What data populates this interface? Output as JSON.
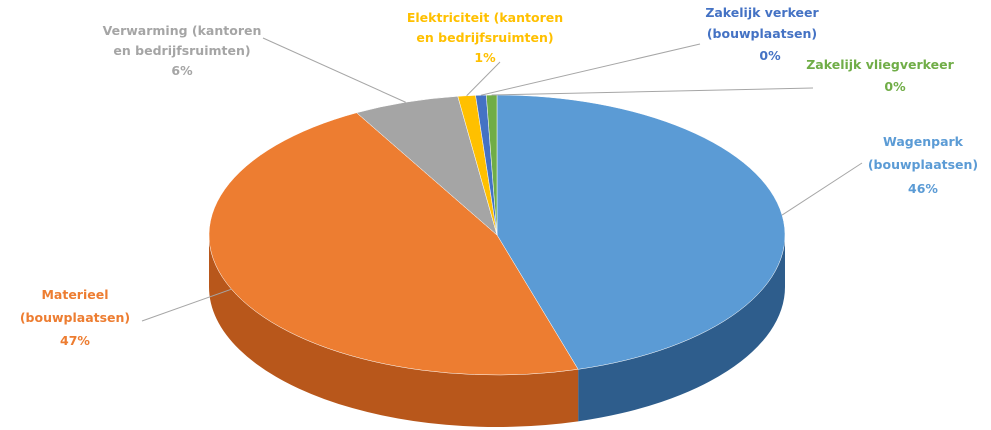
{
  "chart_data": {
    "type": "pie",
    "style": "3d-tilted",
    "legend": "none",
    "slices": [
      {
        "name": "Wagenpark (bouwplaatsen)",
        "percent_label": "46%",
        "value": 46,
        "color": "#5B9BD5",
        "side_color": "#2E5D8C"
      },
      {
        "name": "Materieel (bouwplaatsen)",
        "percent_label": "47%",
        "value": 47,
        "color": "#ED7D31",
        "side_color": "#B8571B"
      },
      {
        "name": "Verwarming (kantoren en bedrijfsruimten)",
        "percent_label": "6%",
        "value": 6,
        "color": "#A5A5A5",
        "side_color": "#7A7A7A"
      },
      {
        "name": "Elektriciteit (kantoren en bedrijfsruimten)",
        "percent_label": "1%",
        "value": 1,
        "color": "#FFC000",
        "side_color": "#C89600"
      },
      {
        "name": "Zakelijk verkeer (bouwplaatsen)",
        "percent_label": "0%",
        "value": 0,
        "color": "#4472C4",
        "side_color": "#2F528F"
      },
      {
        "name": "Zakelijk vliegverkeer",
        "percent_label": "0%",
        "value": 0,
        "color": "#70AD47",
        "side_color": "#4E7A32"
      }
    ]
  },
  "labels": {
    "wagenpark": {
      "line1": "Wagenpark",
      "line2": "(bouwplaatsen)",
      "pct": "46%",
      "color": "#5B9BD5"
    },
    "materieel": {
      "line1": "Materieel",
      "line2": "(bouwplaatsen)",
      "pct": "47%",
      "color": "#ED7D31"
    },
    "verwarming": {
      "line1": "Verwarming (kantoren",
      "line2": "en bedrijfsruimten)",
      "pct": "6%",
      "color": "#A5A5A5"
    },
    "elektriciteit": {
      "line1": "Elektriciteit (kantoren",
      "line2": "en bedrijfsruimten)",
      "pct": "1%",
      "color": "#FFC000"
    },
    "zakelijk_verkeer": {
      "line1": "Zakelijk verkeer",
      "line2": "(bouwplaatsen)",
      "pct": "0%",
      "color": "#4472C4"
    },
    "vliegverkeer": {
      "line1": "Zakelijk vliegverkeer",
      "pct": "0%",
      "color": "#70AD47"
    }
  }
}
